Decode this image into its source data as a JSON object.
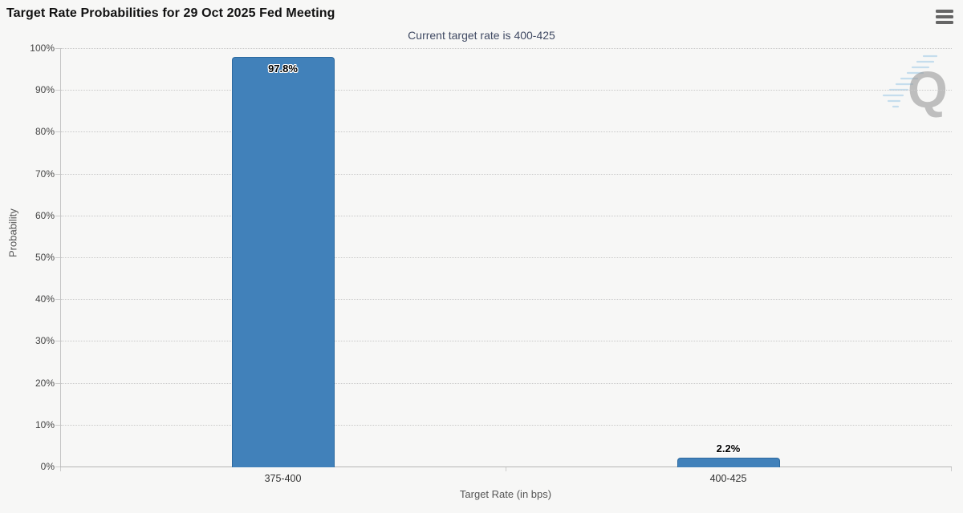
{
  "chart_data": {
    "type": "bar",
    "title": "Target Rate Probabilities for 29 Oct 2025 Fed Meeting",
    "subtitle": "Current target rate is 400-425",
    "categories": [
      "375-400",
      "400-425"
    ],
    "values": [
      97.8,
      2.2
    ],
    "value_labels": [
      "97.8%",
      "2.2%"
    ],
    "xlabel": "Target Rate (in bps)",
    "ylabel": "Probability",
    "ylim": [
      0,
      100
    ],
    "ytick_step": 10,
    "ytick_suffix": "%",
    "grid": "horizontal-dotted",
    "legend": "none",
    "bar_color": "#4181ba",
    "bar_border_color": "#2c699f"
  },
  "menu": {
    "icon_name": "hamburger-icon"
  },
  "watermark": {
    "letter": "Q"
  },
  "colors": {
    "background": "#f7f7f6",
    "title": "#111111",
    "subtitle": "#404a63",
    "grid": "#c9c9c9",
    "axis_line": "#c0c0c0",
    "tick_label": "#444444",
    "axis_title": "#555555",
    "bar": "#4181ba",
    "watermark_letter": "#9c9c9c",
    "watermark_swoosh": "#b5d5ea",
    "menu_icon": "#666666"
  }
}
